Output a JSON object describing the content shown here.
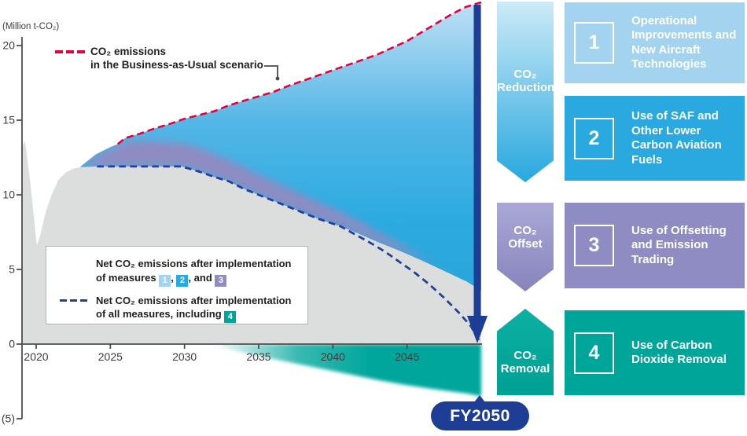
{
  "colors": {
    "red_dashed": "#e2003f",
    "navy_arrow": "#1e3e95",
    "navy_dashed": "#24409a",
    "gray_area": "#dcdddd",
    "blue_area": "#29a9e0",
    "light_blue": "#a3d3ef",
    "purple": "#8e8cc2",
    "teal": "#00a59a"
  },
  "chart": {
    "unit_label": "(Million t-CO₂)",
    "bau_legend_line1": "CO₂ emissions",
    "bau_legend_line2": "in the Business-as-Usual scenario",
    "legend": {
      "row1_line1": "Net CO₂ emissions after implementation",
      "row1_line2_prefix": "of measures ",
      "row1_sep1": ", ",
      "row1_sep2": ", and ",
      "chip1": "1",
      "chip2": "2",
      "chip3": "3",
      "chip4": "4",
      "row2_line1": "Net CO₂ emissions after implementation",
      "row2_line2_prefix": "of all measures, including "
    },
    "end_label": "FY2050"
  },
  "chart_data": {
    "type": "area",
    "ylabel": "(Million t-CO₂)",
    "ylim": [
      -5,
      20
    ],
    "x_range": [
      2019,
      2050
    ],
    "grid": false,
    "y_ticks": [
      {
        "value": 20,
        "label": "20"
      },
      {
        "value": 15,
        "label": "15"
      },
      {
        "value": 10,
        "label": "10"
      },
      {
        "value": 5,
        "label": "5"
      },
      {
        "value": 0,
        "label": "0"
      },
      {
        "value": -5,
        "label": "(5)"
      }
    ],
    "x_ticks": [
      {
        "value": 2020,
        "label": "2020"
      },
      {
        "value": 2025,
        "label": "2025"
      },
      {
        "value": 2030,
        "label": "2030"
      },
      {
        "value": 2035,
        "label": "2035"
      },
      {
        "value": 2040,
        "label": "2040"
      },
      {
        "value": 2045,
        "label": "2045"
      }
    ],
    "x_end": {
      "value": 2050,
      "label": "FY2050"
    },
    "series": [
      {
        "id": "bau",
        "name": "CO₂ emissions in the Business-as-Usual scenario",
        "style": "red dashed line, top edge of blue reduction area",
        "dash_visible_from": 2025.5,
        "points": [
          [
            2023,
            11.9
          ],
          [
            2024,
            12.7
          ],
          [
            2025,
            13.2
          ],
          [
            2025.5,
            13.4
          ],
          [
            2026,
            13.8
          ],
          [
            2027,
            14.1
          ],
          [
            2028,
            14.45
          ],
          [
            2029,
            14.75
          ],
          [
            2030,
            15.1
          ],
          [
            2031,
            15.35
          ],
          [
            2032,
            15.6
          ],
          [
            2033,
            16.0
          ],
          [
            2034,
            16.3
          ],
          [
            2035,
            16.6
          ],
          [
            2036,
            16.9
          ],
          [
            2037,
            17.3
          ],
          [
            2038,
            17.65
          ],
          [
            2039,
            18.0
          ],
          [
            2040,
            18.35
          ],
          [
            2041,
            18.7
          ],
          [
            2042,
            19.05
          ],
          [
            2043,
            19.4
          ],
          [
            2044,
            19.85
          ],
          [
            2045,
            20.3
          ],
          [
            2046,
            20.9
          ],
          [
            2047,
            21.5
          ],
          [
            2048,
            22.1
          ],
          [
            2049,
            22.6
          ],
          [
            2050,
            22.9
          ]
        ]
      },
      {
        "id": "net123",
        "name": "Net CO₂ emissions after implementation of measures 1, 2, and 3",
        "style": "top edge of gray area",
        "points": [
          [
            2019.05,
            13.2
          ],
          [
            2019.25,
            13.6
          ],
          [
            2019.6,
            10.8
          ],
          [
            2020.05,
            6.6
          ],
          [
            2020.3,
            7.4
          ],
          [
            2020.6,
            8.7
          ],
          [
            2021,
            9.9
          ],
          [
            2021.5,
            11.0
          ],
          [
            2022,
            11.5
          ],
          [
            2022.5,
            11.75
          ],
          [
            2023,
            11.85
          ],
          [
            2024,
            11.9
          ],
          [
            2029.8,
            11.9
          ],
          [
            2030.5,
            11.7
          ],
          [
            2031,
            11.55
          ],
          [
            2032,
            11.2
          ],
          [
            2033,
            10.9
          ],
          [
            2034,
            10.4
          ],
          [
            2035,
            10.0
          ],
          [
            2036,
            9.6
          ],
          [
            2037,
            9.2
          ],
          [
            2038,
            8.8
          ],
          [
            2039,
            8.4
          ],
          [
            2040,
            8.05
          ],
          [
            2040.5,
            7.9
          ],
          [
            2041.5,
            7.5
          ],
          [
            2043,
            6.85
          ],
          [
            2044.5,
            6.25
          ],
          [
            2046,
            5.6
          ],
          [
            2047.5,
            4.9
          ],
          [
            2049,
            4.2
          ],
          [
            2050,
            3.6
          ]
        ]
      },
      {
        "id": "net_all",
        "name": "Net CO₂ emissions after implementation of all measures, including 4",
        "style": "navy dashed line, reaches 0 at FY2050",
        "points": [
          [
            2024.1,
            11.9
          ],
          [
            2029.8,
            11.9
          ],
          [
            2030.5,
            11.7
          ],
          [
            2031,
            11.55
          ],
          [
            2032,
            11.2
          ],
          [
            2033,
            10.9
          ],
          [
            2034,
            10.4
          ],
          [
            2035,
            10.0
          ],
          [
            2036,
            9.6
          ],
          [
            2037,
            9.2
          ],
          [
            2038,
            8.8
          ],
          [
            2039,
            8.4
          ],
          [
            2040.5,
            7.9
          ],
          [
            2041.5,
            7.35
          ],
          [
            2042.5,
            6.8
          ],
          [
            2043.5,
            6.2
          ],
          [
            2044.5,
            5.5
          ],
          [
            2045.5,
            4.8
          ],
          [
            2046.5,
            4.0
          ],
          [
            2047.5,
            3.1
          ],
          [
            2048.5,
            2.1
          ],
          [
            2049.3,
            1.2
          ],
          [
            2050,
            0
          ]
        ]
      },
      {
        "id": "offset_top",
        "name": "Top of CO₂ offset band (measure 3)",
        "style": "purple band between blue area and gray area",
        "points": [
          [
            2023,
            11.9
          ],
          [
            2024,
            12.6
          ],
          [
            2025,
            13.1
          ],
          [
            2026,
            13.55
          ],
          [
            2027,
            13.65
          ],
          [
            2028,
            13.6
          ],
          [
            2029,
            13.55
          ],
          [
            2030,
            13.45
          ],
          [
            2031,
            13.15
          ],
          [
            2032,
            12.75
          ],
          [
            2033,
            12.35
          ],
          [
            2034,
            11.85
          ],
          [
            2035,
            11.35
          ],
          [
            2036,
            10.9
          ],
          [
            2037,
            10.45
          ],
          [
            2038,
            10.0
          ],
          [
            2039,
            9.5
          ],
          [
            2040,
            9.1
          ],
          [
            2041,
            8.6
          ],
          [
            2042,
            8.1
          ],
          [
            2043,
            7.5
          ],
          [
            2044,
            7.0
          ],
          [
            2045,
            6.4
          ],
          [
            2046,
            5.8
          ],
          [
            2047,
            5.1
          ],
          [
            2048,
            4.5
          ]
        ]
      },
      {
        "id": "removal",
        "name": "CO₂ removal by measure 4 (below zero line)",
        "style": "teal area below x-axis, fading in from ~2032",
        "points": [
          [
            2031.5,
            0
          ],
          [
            2033,
            -0.35
          ],
          [
            2035,
            -0.8
          ],
          [
            2037,
            -1.2
          ],
          [
            2039,
            -1.6
          ],
          [
            2041,
            -2.0
          ],
          [
            2043,
            -2.4
          ],
          [
            2045,
            -2.75
          ],
          [
            2047,
            -3.05
          ],
          [
            2049,
            -3.3
          ],
          [
            2050,
            -3.5
          ]
        ]
      }
    ]
  },
  "side": {
    "arrows": [
      {
        "id": "reduction",
        "line1": "CO₂",
        "line2": "Reduction",
        "direction": "down"
      },
      {
        "id": "offset",
        "line1": "CO₂",
        "line2": "Offset",
        "direction": "down"
      },
      {
        "id": "removal",
        "line1": "CO₂",
        "line2": "Removal",
        "direction": "up"
      }
    ],
    "boxes": [
      {
        "number": "1",
        "text": "Operational Improvements and New Aircraft Technologies"
      },
      {
        "number": "2",
        "text": "Use of SAF and Other Lower Carbon Aviation Fuels"
      },
      {
        "number": "3",
        "text": "Use of Offsetting and Emission Trading"
      },
      {
        "number": "4",
        "text": "Use of Carbon Dioxide Removal"
      }
    ]
  }
}
